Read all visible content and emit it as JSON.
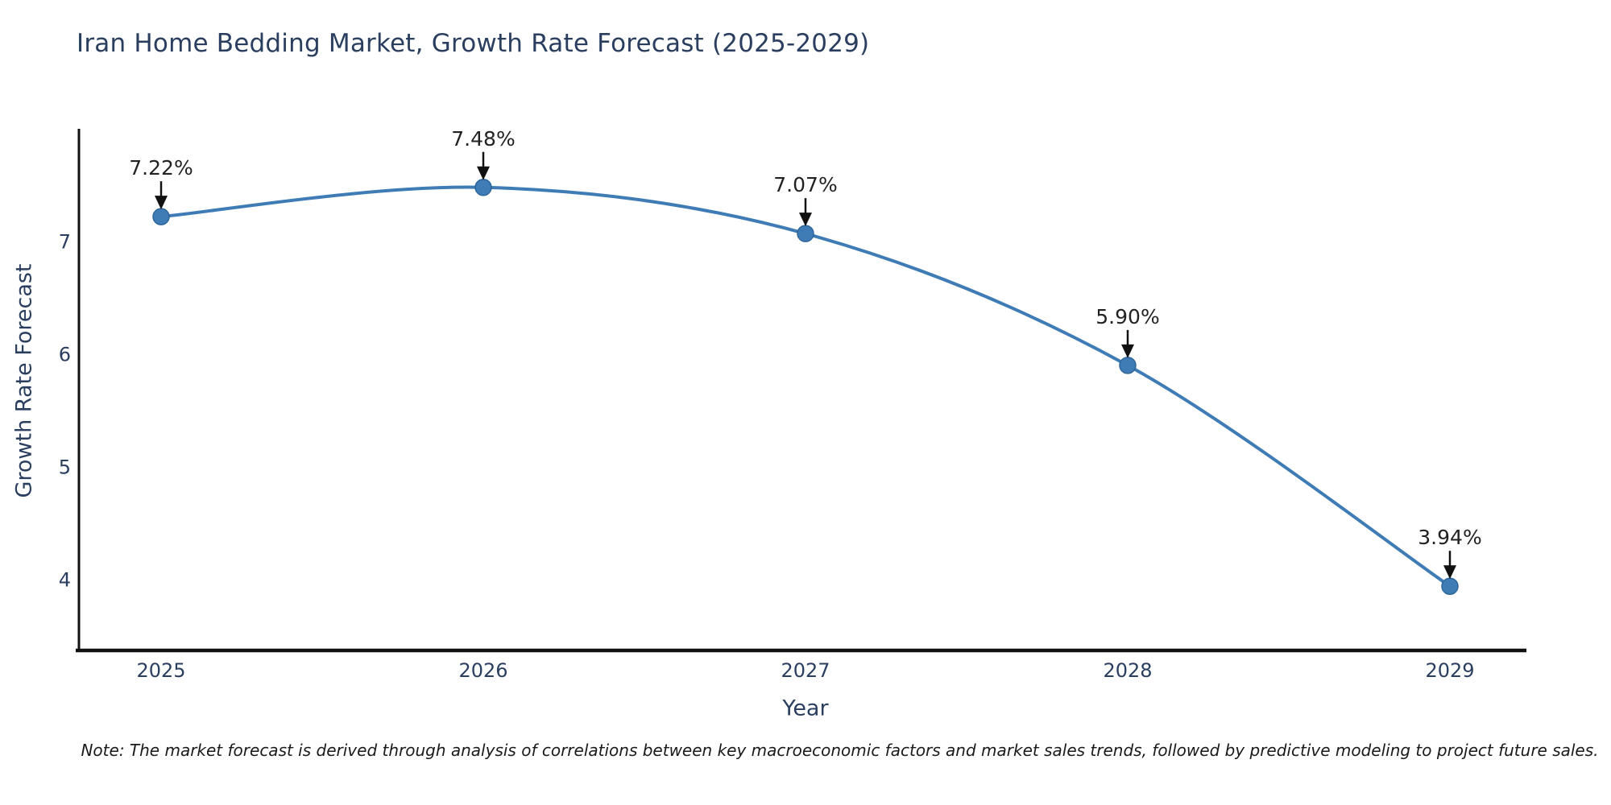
{
  "page": {
    "title": "Iran Home Bedding Market, Growth Rate Forecast (2025-2029)",
    "note": "Note: The market forecast is derived through analysis of correlations between key macroeconomic factors and market sales trends, followed by predictive modeling to project future sales."
  },
  "chart_data": {
    "type": "line",
    "title": "Iran Home Bedding Market, Growth Rate Forecast (2025-2029)",
    "xlabel": "Year",
    "ylabel": "Growth Rate Forecast",
    "x": [
      2025,
      2026,
      2027,
      2028,
      2029
    ],
    "values": [
      7.22,
      7.48,
      7.07,
      5.9,
      3.94
    ],
    "point_labels": [
      "7.22%",
      "7.48%",
      "7.07%",
      "5.90%",
      "3.94%"
    ],
    "x_tick_labels": [
      "2025",
      "2026",
      "2027",
      "2028",
      "2029"
    ],
    "y_ticks": [
      4,
      5,
      6,
      7
    ],
    "xlim": [
      2024.745,
      2029.2375
    ],
    "ylim": [
      3.37,
      8.0
    ],
    "grid": false,
    "legend": "none",
    "line_shape": "spline",
    "marker_style": "circle",
    "annotation_style": "value label above each point with downward black arrow",
    "colors": {
      "line": "#3f7cb6",
      "marker": "#3f7cb6",
      "marker_edge": "#2e6699",
      "annotation_text": "#222222",
      "annotation_arrow": "#111111",
      "axis_line": "#111111",
      "tick_text": "#2a3f5f",
      "title_text": "#2a3f5f",
      "note_text": "#1a1a1a",
      "background": "#ffffff"
    }
  }
}
